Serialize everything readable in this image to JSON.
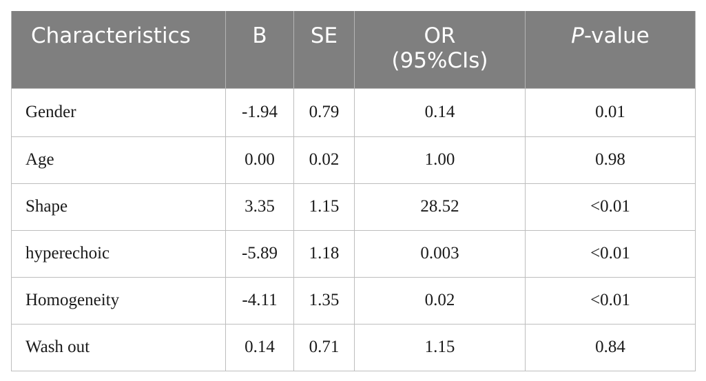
{
  "table": {
    "headers": {
      "characteristics": "Characteristics",
      "b": "B",
      "se": "SE",
      "or_line1": "OR",
      "or_line2": "(95%CIs)",
      "p_italic": "P",
      "p_rest": "-value"
    },
    "rows": [
      {
        "characteristic": "Gender",
        "b": "-1.94",
        "se": "0.79",
        "or": "0.14",
        "p": "0.01"
      },
      {
        "characteristic": "Age",
        "b": "0.00",
        "se": "0.02",
        "or": "1.00",
        "p": "0.98"
      },
      {
        "characteristic": "Shape",
        "b": "3.35",
        "se": "1.15",
        "or": "28.52",
        "p": "<0.01"
      },
      {
        "characteristic": "hyperechoic",
        "b": "-5.89",
        "se": "1.18",
        "or": "0.003",
        "p": "<0.01"
      },
      {
        "characteristic": "Homogeneity",
        "b": "-4.11",
        "se": "1.35",
        "or": "0.02",
        "p": "<0.01"
      },
      {
        "characteristic": "Wash out",
        "b": "0.14",
        "se": "0.71",
        "or": "1.15",
        "p": "0.84"
      }
    ]
  },
  "colors": {
    "header_background": "#7f7f7f",
    "header_text": "#ffffff",
    "grid_line": "#bdbdbd"
  }
}
